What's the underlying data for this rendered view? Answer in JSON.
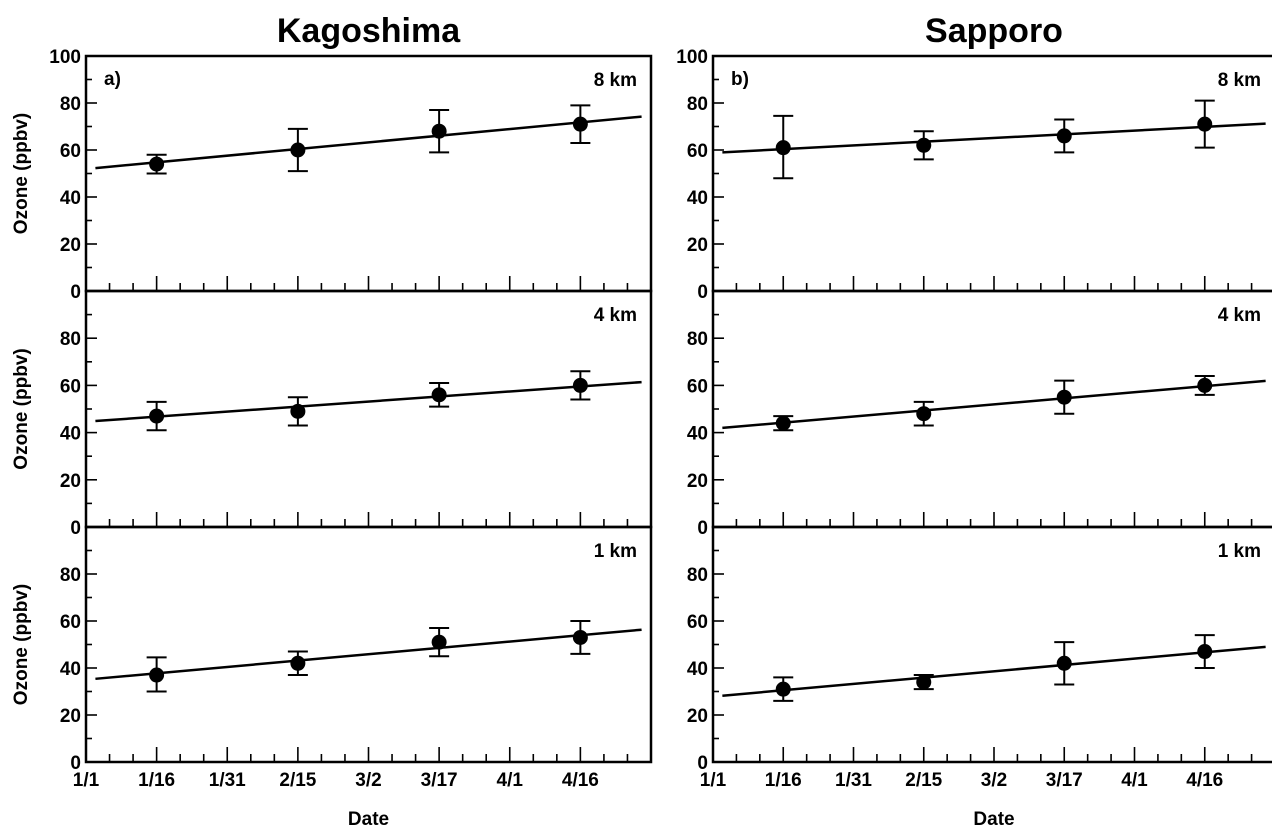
{
  "chart_data": [
    {
      "type": "scatter",
      "title": "Kagoshima",
      "xlabel": "Date",
      "ylabel": "Ozone (ppbv)",
      "x_tick_labels": [
        "1/1",
        "1/16",
        "1/31",
        "2/15",
        "3/2",
        "3/17",
        "4/1",
        "4/16"
      ],
      "x_tick_days": [
        0,
        15,
        30,
        45,
        60,
        75,
        90,
        105
      ],
      "xlim_days": [
        0,
        120
      ],
      "ylim": [
        0,
        100
      ],
      "y_ticks": [
        0,
        20,
        40,
        60,
        80,
        100
      ],
      "panels": [
        {
          "panel_label": "a)",
          "altitude_label": "8 km",
          "x_days": [
            15,
            45,
            75,
            105
          ],
          "values": [
            54,
            60,
            68,
            71
          ],
          "err_low": [
            50,
            51,
            59,
            63
          ],
          "err_high": [
            58,
            69,
            77,
            79
          ],
          "fit": {
            "x_days": [
              2,
              118
            ],
            "y": [
              52.3,
              74.2
            ]
          }
        },
        {
          "panel_label": "",
          "altitude_label": "4 km",
          "x_days": [
            15,
            45,
            75,
            105
          ],
          "values": [
            47,
            49,
            56,
            60
          ],
          "err_low": [
            41,
            43,
            51,
            54
          ],
          "err_high": [
            53,
            55,
            61,
            66
          ],
          "fit": {
            "x_days": [
              2,
              118
            ],
            "y": [
              44.9,
              61.4
            ]
          }
        },
        {
          "panel_label": "",
          "altitude_label": "1 km",
          "x_days": [
            15,
            45,
            75,
            105
          ],
          "values": [
            37,
            42,
            51,
            53
          ],
          "err_low": [
            30,
            37,
            45,
            46
          ],
          "err_high": [
            44.5,
            47,
            57,
            60
          ],
          "fit": {
            "x_days": [
              2,
              118
            ],
            "y": [
              35.4,
              56.3
            ]
          }
        }
      ]
    },
    {
      "type": "scatter",
      "title": "Sapporo",
      "xlabel": "Date",
      "ylabel": "",
      "x_tick_labels": [
        "1/1",
        "1/16",
        "1/31",
        "2/15",
        "3/2",
        "3/17",
        "4/1",
        "4/16"
      ],
      "x_tick_days": [
        0,
        15,
        30,
        45,
        60,
        75,
        90,
        105
      ],
      "xlim_days": [
        0,
        120
      ],
      "ylim": [
        0,
        100
      ],
      "y_ticks": [
        0,
        20,
        40,
        60,
        80,
        100
      ],
      "panels": [
        {
          "panel_label": "b)",
          "altitude_label": "8 km",
          "x_days": [
            15,
            45,
            75,
            105
          ],
          "values": [
            61,
            62,
            66,
            71
          ],
          "err_low": [
            48,
            56,
            59,
            61
          ],
          "err_high": [
            74.5,
            68,
            73,
            81
          ],
          "fit": {
            "x_days": [
              2,
              118
            ],
            "y": [
              59.0,
              71.2
            ]
          }
        },
        {
          "panel_label": "",
          "altitude_label": "4 km",
          "x_days": [
            15,
            45,
            75,
            105
          ],
          "values": [
            44,
            48,
            55,
            60
          ],
          "err_low": [
            41,
            43,
            48,
            56
          ],
          "err_high": [
            47,
            53,
            62,
            64
          ],
          "fit": {
            "x_days": [
              2,
              118
            ],
            "y": [
              42.0,
              61.9
            ]
          }
        },
        {
          "panel_label": "",
          "altitude_label": "1 km",
          "x_days": [
            15,
            45,
            75,
            105
          ],
          "values": [
            31,
            34,
            42,
            47
          ],
          "err_low": [
            26,
            31,
            33,
            40
          ],
          "err_high": [
            36,
            37,
            51,
            54
          ],
          "fit": {
            "x_days": [
              2,
              118
            ],
            "y": [
              28.2,
              49.0
            ]
          }
        }
      ]
    }
  ]
}
